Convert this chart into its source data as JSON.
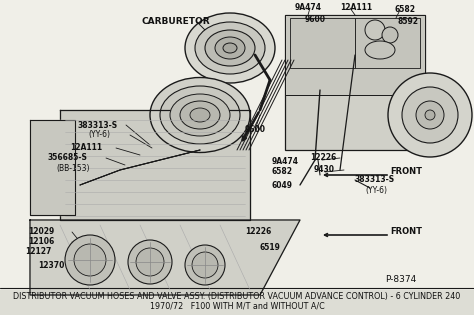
{
  "title_line1": "DISTRIBUTOR VACUUM HOSES AND VALVE ASSY. (DISTRIBUTOR VACUUM ADVANCE CONTROL) - 6 CYLINDER 240",
  "title_line2": "1970/72   F100 WITH M/T and WITHOUT A/C",
  "part_number": "P-8374",
  "bg_color": "#e8e8e0",
  "line_color": "#1a1a1a",
  "text_color": "#111111",
  "label_fontsize": 5.5,
  "title_fontsize": 5.8
}
